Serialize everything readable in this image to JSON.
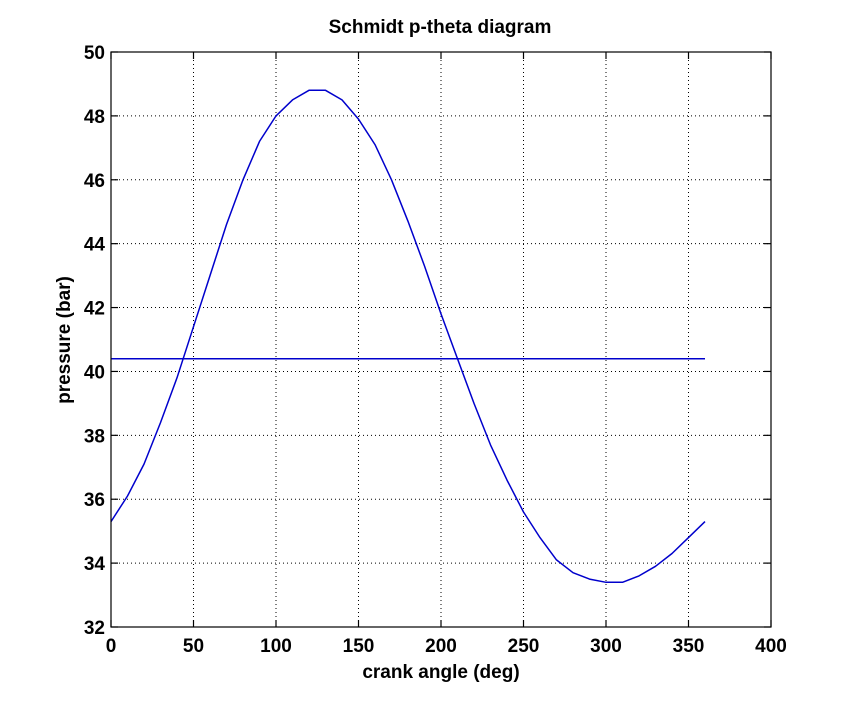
{
  "chart_data": {
    "type": "line",
    "title": "Schmidt p-theta diagram",
    "xlabel": "crank angle (deg)",
    "ylabel": "pressure (bar)",
    "xlim": [
      0,
      400
    ],
    "ylim": [
      32,
      50
    ],
    "xticks": [
      0,
      50,
      100,
      150,
      200,
      250,
      300,
      350,
      400
    ],
    "yticks": [
      32,
      34,
      36,
      38,
      40,
      42,
      44,
      46,
      48,
      50
    ],
    "grid": true,
    "line_color": "#0000cc",
    "series": [
      {
        "x": [
          0,
          10,
          20,
          30,
          40,
          50,
          60,
          70,
          80,
          90,
          100,
          110,
          120,
          130,
          140,
          150,
          160,
          170,
          180,
          190,
          200,
          210,
          220,
          230,
          240,
          250,
          260,
          270,
          280,
          290,
          300,
          310,
          320,
          330,
          340,
          350,
          360
        ],
        "values": [
          35.3,
          36.1,
          37.1,
          38.4,
          39.8,
          41.4,
          43.0,
          44.6,
          46.0,
          47.2,
          48.0,
          48.5,
          48.8,
          48.8,
          48.5,
          47.9,
          47.1,
          46.0,
          44.7,
          43.3,
          41.8,
          40.4,
          39.0,
          37.7,
          36.6,
          35.6,
          34.8,
          34.1,
          33.7,
          33.5,
          33.4,
          33.4,
          33.6,
          33.9,
          34.3,
          34.8,
          35.3
        ]
      },
      {
        "x": [
          0,
          360
        ],
        "values": [
          40.4,
          40.4
        ]
      }
    ]
  }
}
